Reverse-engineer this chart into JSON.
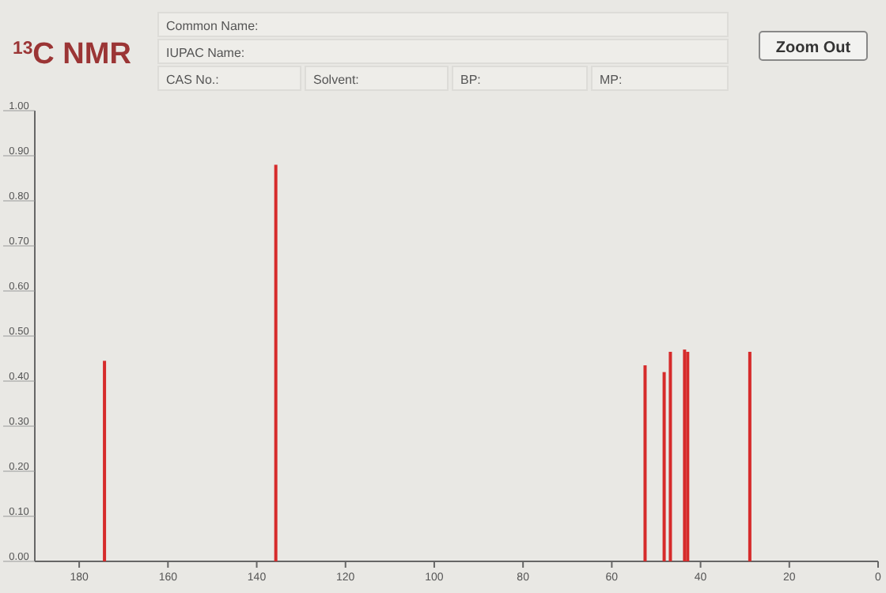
{
  "chart_data": {
    "type": "bar",
    "title": "$^{13}$C NMR",
    "annotations": [
      "Common Name:",
      "IUPAC Name:",
      "CAS No.:",
      "Solvent:",
      "BP:",
      "MP:",
      "Zoom Out"
    ],
    "x": [
      174.3,
      135.7,
      52.5,
      48.2,
      46.8,
      43.6,
      42.9,
      28.9
    ],
    "values": [
      0.445,
      0.88,
      0.435,
      0.42,
      0.465,
      0.47,
      0.465,
      0.465
    ],
    "color": "#d62b2b",
    "xlim": [
      190,
      0
    ],
    "xticks": [
      180,
      160,
      140,
      120,
      100,
      80,
      60,
      40,
      20,
      0
    ],
    "ylim": [
      0,
      1
    ],
    "yticks": [
      {
        "value": 0,
        "label": "0.00"
      },
      {
        "value": 0.1,
        "label": "0.10"
      },
      {
        "value": 0.2,
        "label": "0.20"
      },
      {
        "value": 0.3,
        "label": "0.30"
      },
      {
        "value": 0.4,
        "label": "0.40"
      },
      {
        "value": 0.5,
        "label": "0.50"
      },
      {
        "value": 0.6,
        "label": "0.60"
      },
      {
        "value": 0.7,
        "label": "0.70"
      },
      {
        "value": 0.8,
        "label": "0.80"
      },
      {
        "value": 0.9,
        "label": "0.90"
      },
      {
        "value": 1,
        "label": "1.00"
      }
    ]
  }
}
